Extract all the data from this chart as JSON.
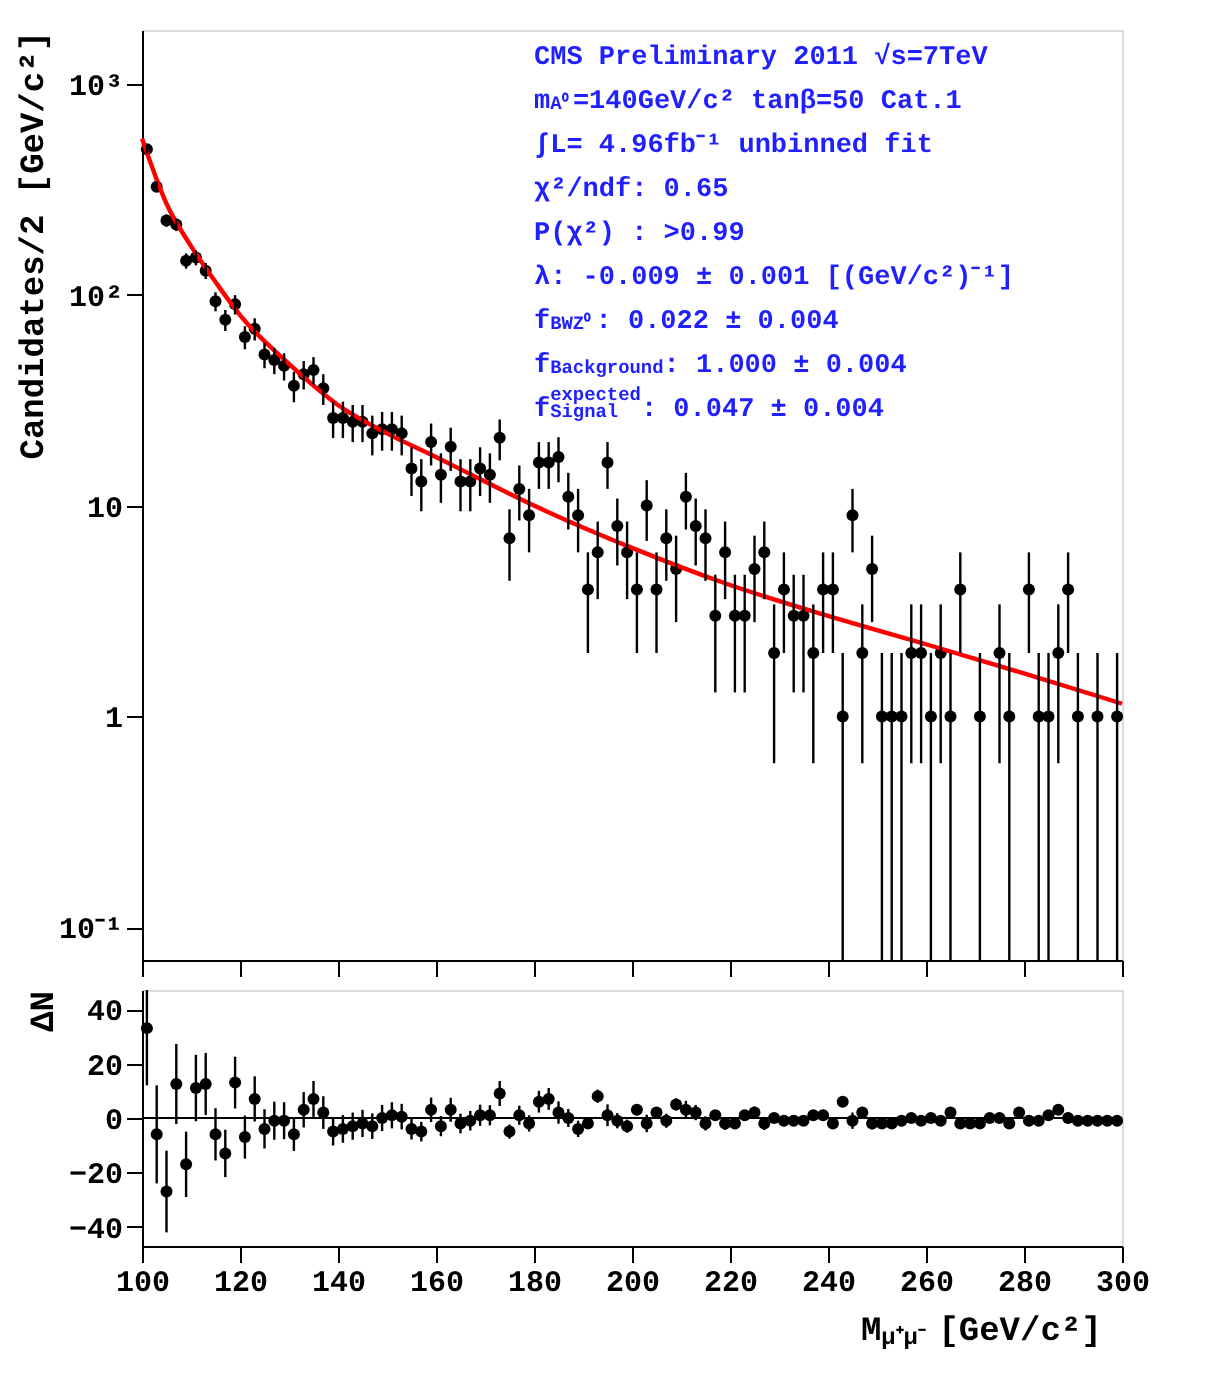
{
  "chart_data": [
    {
      "type": "scatter",
      "ylabel": "Candidates/2  [GeV/c²]",
      "log": true,
      "grid": false,
      "marker": "circle",
      "tick_labels": "y",
      "xlim": [
        100,
        300
      ],
      "xticks": [
        100,
        120,
        140,
        160,
        180,
        200,
        220,
        240,
        260,
        280,
        300
      ],
      "ylim": [
        0.07,
        1800
      ],
      "yticks": [
        {
          "value": 1000,
          "label": "10³"
        },
        {
          "value": 100,
          "label": "10²"
        },
        10,
        1,
        {
          "value": 0.1,
          "label": "10⁻¹"
        }
      ],
      "x": [
        101,
        103,
        105,
        107,
        109,
        111,
        113,
        115,
        117,
        119,
        121,
        123,
        125,
        127,
        129,
        131,
        133,
        135,
        137,
        139,
        141,
        143,
        145,
        147,
        149,
        151,
        153,
        155,
        157,
        159,
        161,
        163,
        165,
        167,
        169,
        171,
        173,
        175,
        177,
        179,
        181,
        183,
        185,
        187,
        189,
        191,
        193,
        195,
        197,
        199,
        201,
        203,
        205,
        207,
        209,
        211,
        213,
        215,
        217,
        219,
        221,
        223,
        225,
        227,
        229,
        231,
        233,
        235,
        237,
        239,
        241,
        243,
        245,
        247,
        249,
        251,
        253,
        255,
        257,
        259,
        261,
        263,
        265,
        267,
        269,
        271,
        273,
        275,
        277,
        279,
        281,
        283,
        285,
        287,
        289,
        291,
        293,
        295,
        297,
        299
      ],
      "annotations": [
        "CMS Preliminary 2011 √s=7TeV",
        "m$_{A⁰}$=140GeV/c² tanβ=50 Cat.1",
        "∫L= 4.96fb⁻¹   unbinned fit",
        "χ²/ndf:  0.65",
        "P(χ²) : >0.99",
        "λ: -0.009 ± 0.001 [(GeV/c²)⁻¹]",
        "f$_{BWZ⁰}$: 0.022 ± 0.004",
        "f$_{Background}$: 1.000 ± 0.004",
        "f$^{expected}$$_{Signal}$ : 0.047 ± 0.004"
      ],
      "series": [
        {
          "color": "#000000",
          "values": [
            490,
            325,
            225,
            215,
            145,
            150,
            130,
            93,
            76,
            90,
            63,
            69,
            52,
            49,
            46,
            37,
            42,
            44,
            36,
            26,
            26,
            25,
            25,
            22,
            23,
            23,
            22,
            15,
            13,
            20,
            14,
            19,
            13,
            13,
            15,
            14,
            21,
            7,
            12,
            9,
            16,
            16,
            17,
            11,
            9,
            4,
            6,
            16,
            8,
            6,
            4,
            10,
            4,
            7,
            5,
            11,
            8,
            7,
            3,
            6,
            3,
            3,
            5,
            6,
            2,
            4,
            3,
            3,
            2,
            4,
            4,
            1,
            9,
            2,
            5,
            1,
            1,
            1,
            2,
            2,
            1,
            2,
            1,
            4,
            null,
            1,
            null,
            2,
            1,
            null,
            4,
            1,
            1,
            2,
            4,
            1,
            null,
            1,
            null,
            1
          ],
          "errors": [
            22.1,
            18.0,
            15,
            14.7,
            12.0,
            12.2,
            11.4,
            9.6,
            8.7,
            9.5,
            7.9,
            8.3,
            7.2,
            7,
            6.8,
            6.1,
            6.5,
            6.6,
            6,
            5.1,
            5.1,
            5,
            5,
            4.7,
            4.8,
            4.8,
            4.7,
            3.9,
            3.6,
            4.5,
            3.7,
            4.4,
            3.6,
            3.6,
            3.9,
            3.7,
            4.6,
            2.6,
            3.5,
            3,
            4,
            4,
            4.1,
            3.3,
            3,
            2,
            2.4,
            4,
            2.8,
            2.4,
            2,
            3.2,
            2,
            2.6,
            2.2,
            3.3,
            2.8,
            2.6,
            1.7,
            2.4,
            1.7,
            1.7,
            2.2,
            2.4,
            1.4,
            2,
            1.7,
            1.7,
            1.4,
            2,
            2,
            [
              0.07,
              2
            ],
            3,
            1.4,
            2.2,
            [
              0.07,
              2
            ],
            [
              0.07,
              2
            ],
            [
              0.07,
              2
            ],
            1.4,
            1.4,
            [
              0.07,
              2
            ],
            1.4,
            [
              0.07,
              2
            ],
            2,
            null,
            [
              0.07,
              2
            ],
            null,
            1.4,
            [
              0.07,
              2
            ],
            null,
            2,
            [
              0.07,
              2
            ],
            [
              0.07,
              2
            ],
            1.4,
            2,
            [
              0.07,
              2
            ],
            null,
            [
              0.07,
              2
            ],
            null,
            [
              0.07,
              2
            ]
          ]
        },
        {
          "type": "line",
          "color": "#ff0000",
          "line_style": "solid",
          "marker": "none",
          "x": [
            100,
            105,
            110,
            115,
            120,
            130,
            140,
            150,
            160,
            170,
            180,
            200,
            220,
            240,
            260,
            280,
            300
          ],
          "values": [
            550,
            270,
            170,
            115,
            80,
            47,
            30,
            22,
            17,
            13,
            10,
            6.3,
            4.2,
            3.0,
            2.2,
            1.6,
            1.15
          ]
        }
      ]
    },
    {
      "type": "scatter",
      "ylabel": "ΔN",
      "xlabel": "M$_{μ⁺μ⁻}$ [GeV/c²]",
      "grid": false,
      "marker": "circle",
      "xlim": [
        100,
        300
      ],
      "xticks": [
        100,
        120,
        140,
        160,
        180,
        200,
        220,
        240,
        260,
        280,
        300
      ],
      "ylim": [
        -47,
        47
      ],
      "yticks": [
        -40,
        -20,
        0,
        20,
        40
      ],
      "ref_lines": [
        {
          "axis": "y",
          "value": 0,
          "color": "#000000"
        }
      ],
      "x": [
        101,
        103,
        105,
        107,
        109,
        111,
        113,
        115,
        117,
        119,
        121,
        123,
        125,
        127,
        129,
        131,
        133,
        135,
        137,
        139,
        141,
        143,
        145,
        147,
        149,
        151,
        153,
        155,
        157,
        159,
        161,
        163,
        165,
        167,
        169,
        171,
        173,
        175,
        177,
        179,
        181,
        183,
        185,
        187,
        189,
        191,
        193,
        195,
        197,
        199,
        201,
        203,
        205,
        207,
        209,
        211,
        213,
        215,
        217,
        219,
        221,
        223,
        225,
        227,
        229,
        231,
        233,
        235,
        237,
        239,
        241,
        243,
        245,
        247,
        249,
        251,
        253,
        255,
        257,
        259,
        261,
        263,
        265,
        267,
        269,
        271,
        273,
        275,
        277,
        279,
        281,
        283,
        285,
        287,
        289,
        291,
        293,
        295,
        297,
        299
      ],
      "series": [
        {
          "color": "#000000",
          "values": [
            33,
            -6,
            -27,
            12.5,
            -17,
            11,
            12.5,
            -6,
            -13,
            13,
            -7,
            7,
            -4,
            -1,
            -1,
            -6,
            3,
            7,
            2,
            -5,
            -4,
            -3,
            -2,
            -3,
            0,
            1,
            0.5,
            -4,
            -5,
            3,
            -3,
            3,
            -2,
            -1,
            1,
            1,
            9,
            -5,
            1,
            -2,
            6,
            7,
            2,
            0,
            -4,
            -2,
            8,
            1,
            -1,
            -3,
            3,
            -2,
            2,
            -1,
            5,
            3,
            2,
            -2,
            1,
            -2,
            -2,
            1,
            2,
            -2,
            0,
            -1,
            -1,
            -1,
            1,
            1,
            -2,
            6,
            -1,
            2,
            -2,
            -2,
            -2,
            -1,
            0,
            -1,
            0,
            -1,
            2,
            -2,
            -2,
            -2,
            0,
            0,
            -2,
            2,
            -1,
            -1,
            1,
            3,
            0,
            -1,
            -1,
            -1,
            -1,
            -1
          ],
          "errors": [
            [
              12,
              47
            ],
            18.0,
            15,
            14.7,
            12.0,
            12.2,
            11.4,
            9.6,
            8.7,
            9.5,
            7.9,
            8.3,
            7.2,
            7,
            6.8,
            6.1,
            6.5,
            6.6,
            6,
            5.1,
            5.1,
            5,
            5,
            4.7,
            4.8,
            4.8,
            4.7,
            3.9,
            3.6,
            4.5,
            3.7,
            4.4,
            3.6,
            3.6,
            3.9,
            3.7,
            4.6,
            2.6,
            3.5,
            3,
            4,
            4,
            4.1,
            3.3,
            3,
            2,
            2.4,
            4,
            2.8,
            2.4,
            2,
            3.2,
            2,
            2.6,
            2.2,
            3.3,
            2.8,
            2.6,
            1.7,
            2.4,
            1.7,
            1.7,
            2.2,
            2.4,
            1.4,
            2,
            1.7,
            1.7,
            1.4,
            2,
            2,
            1,
            3,
            1.4,
            2.2,
            1,
            1,
            1,
            1.4,
            1.4,
            1,
            1.4,
            1,
            2,
            null,
            1,
            null,
            1.4,
            1,
            null,
            2,
            1,
            1,
            1.4,
            2,
            1,
            null,
            1,
            null,
            1
          ]
        }
      ]
    }
  ]
}
